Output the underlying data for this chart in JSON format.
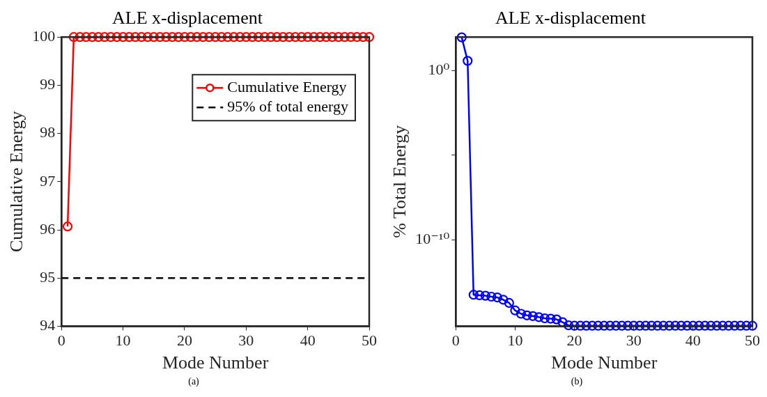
{
  "chart_data": [
    {
      "type": "line",
      "title": "ALE x-displacement",
      "xlabel": "Mode Number",
      "ylabel": "Cumulative Energy",
      "annotations": [
        "(a)"
      ],
      "xlim": [
        0,
        50
      ],
      "xticks": [
        0,
        10,
        20,
        30,
        40,
        50
      ],
      "ylim": [
        94,
        100
      ],
      "yticks": [
        94,
        95,
        96,
        97,
        98,
        99,
        100
      ],
      "grid": false,
      "legend": "top right",
      "marker": "circle",
      "line_style": "solid",
      "x": [
        1,
        2,
        3,
        4,
        5,
        6,
        7,
        8,
        9,
        10,
        11,
        12,
        13,
        14,
        15,
        16,
        17,
        18,
        19,
        20,
        21,
        22,
        23,
        24,
        25,
        26,
        27,
        28,
        29,
        30,
        31,
        32,
        33,
        34,
        35,
        36,
        37,
        38,
        39,
        40,
        41,
        42,
        43,
        44,
        45,
        46,
        47,
        48,
        49,
        50
      ],
      "series": [
        {
          "name": "Cumulative Energy",
          "color": "#ff0000",
          "values": [
            96.07,
            100,
            100,
            100,
            100,
            100,
            100,
            100,
            100,
            100,
            100,
            100,
            100,
            100,
            100,
            100,
            100,
            100,
            100,
            100,
            100,
            100,
            100,
            100,
            100,
            100,
            100,
            100,
            100,
            100,
            100,
            100,
            100,
            100,
            100,
            100,
            100,
            100,
            100,
            100,
            100,
            100,
            100,
            100,
            100,
            100,
            100,
            100,
            100,
            100
          ]
        }
      ],
      "ref_lines": [
        {
          "axis": "y",
          "value": 95,
          "label": "95% of total energy",
          "color": "#000000",
          "line_style": "dashed"
        }
      ]
    },
    {
      "type": "line",
      "title": "ALE x-displacement",
      "xlabel": "Mode Number",
      "ylabel": "% Total Energy",
      "annotations": [
        "(b)"
      ],
      "xlim": [
        0,
        50
      ],
      "xticks": [
        0,
        10,
        20,
        30,
        40,
        50
      ],
      "ylim": [
        7.5e-16,
        100
      ],
      "yticks": [
        {
          "value": 1e-10,
          "label": "10⁻¹⁰"
        },
        {
          "value": 1e-05,
          "label": null
        },
        {
          "value": 1,
          "label": "10⁰"
        }
      ],
      "log": "y",
      "grid": false,
      "marker": "circle",
      "line_style": "solid",
      "x": [
        1,
        2,
        3,
        4,
        5,
        6,
        7,
        8,
        9,
        10,
        11,
        12,
        13,
        14,
        15,
        16,
        17,
        18,
        19,
        20,
        21,
        22,
        23,
        24,
        25,
        26,
        27,
        28,
        29,
        30,
        31,
        32,
        33,
        34,
        35,
        36,
        37,
        38,
        39,
        40,
        41,
        42,
        43,
        44,
        45,
        46,
        47,
        48,
        49,
        50
      ],
      "series": [
        {
          "color": "#0000ff",
          "values": [
            96,
            3.9,
            5.5e-14,
            5.1e-14,
            4.8e-14,
            4.2e-14,
            3.8e-14,
            2.8e-14,
            1.8e-14,
            6.5e-15,
            4.1e-15,
            3.3e-15,
            3e-15,
            2.6e-15,
            2.2e-15,
            2.1e-15,
            1.9e-15,
            1.3e-15,
            8.5e-16,
            8e-16,
            8e-16,
            8e-16,
            8e-16,
            8e-16,
            8e-16,
            8e-16,
            8e-16,
            8e-16,
            8e-16,
            8e-16,
            8e-16,
            8e-16,
            8e-16,
            8e-16,
            8e-16,
            8e-16,
            8e-16,
            8e-16,
            8e-16,
            8e-16,
            8e-16,
            8e-16,
            8e-16,
            8e-16,
            8e-16,
            8e-16,
            8e-16,
            8e-16,
            8e-16,
            8e-16
          ]
        }
      ]
    }
  ]
}
